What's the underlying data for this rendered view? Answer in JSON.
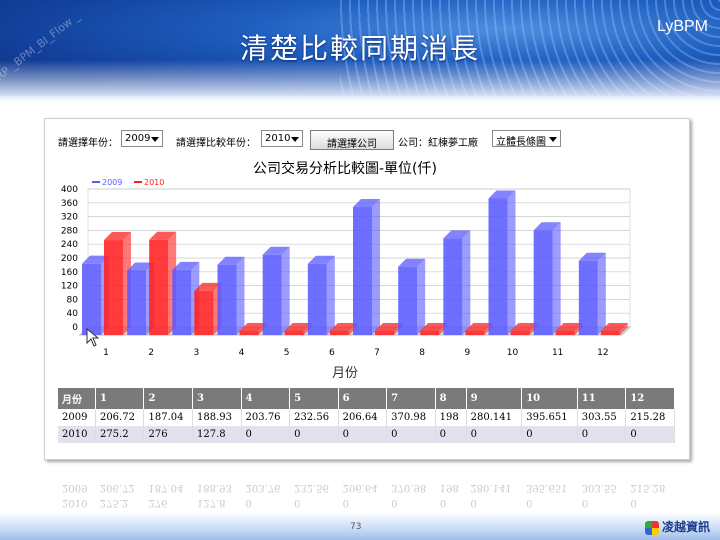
{
  "slide": {
    "title": "清楚比較同期消長",
    "brand": "LyBPM",
    "watermark": "ERP _BPM_BI_Flow _",
    "page_number": "73",
    "logo_text": "凌越資訊"
  },
  "controls": {
    "year_label": "請選擇年份：",
    "year_value": "2009",
    "compare_label": "請選擇比較年份：",
    "compare_value": "2010",
    "company_button": "請選擇公司",
    "company_label": "公司：紅棟夢工廠",
    "chart_type": "立體長條圖"
  },
  "chart_data": {
    "type": "bar",
    "title": "公司交易分析比較圖-單位(仟)",
    "xlabel": "月份",
    "ylabel": "",
    "categories": [
      "1",
      "2",
      "3",
      "4",
      "5",
      "6",
      "7",
      "8",
      "9",
      "10",
      "11",
      "12"
    ],
    "series": [
      {
        "name": "2009",
        "values": [
          206.72,
          187.04,
          188.93,
          203.76,
          232.56,
          206.64,
          370.98,
          198,
          280.141,
          395.651,
          303.55,
          215.28
        ]
      },
      {
        "name": "2010",
        "values": [
          275.2,
          276,
          127.8,
          0,
          0,
          0,
          0,
          0,
          0,
          0,
          0,
          0
        ]
      }
    ],
    "ylim": [
      0,
      400
    ],
    "yticks": [
      0,
      40,
      80,
      120,
      160,
      200,
      240,
      280,
      320,
      360,
      400
    ],
    "grid": true,
    "legend_position": "top-left",
    "colors": {
      "2009": "#5a5aff",
      "2010": "#ff2020"
    }
  },
  "table": {
    "header": [
      "月份",
      "1",
      "2",
      "3",
      "4",
      "5",
      "6",
      "7",
      "8",
      "9",
      "10",
      "11",
      "12"
    ],
    "rows": [
      [
        "2009",
        "206.72",
        "187.04",
        "188.93",
        "203.76",
        "232.56",
        "206.64",
        "370.98",
        "198",
        "280.141",
        "395.651",
        "303.55",
        "215.28"
      ],
      [
        "2010",
        "275.2",
        "276",
        "127.8",
        "0",
        "0",
        "0",
        "0",
        "0",
        "0",
        "0",
        "0",
        "0"
      ]
    ]
  }
}
